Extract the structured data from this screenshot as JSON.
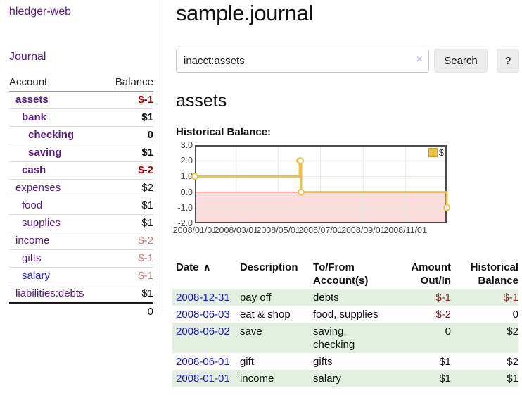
{
  "app": {
    "title": "hledger-web",
    "nav_journal": "Journal"
  },
  "colors": {
    "link_purple": "#551a8b",
    "link_blue": "#1515dd",
    "negative_strong": "#9b0000",
    "negative_light": "#b97575",
    "table_negative": "#941f1f",
    "row_stripe_green": "#e2efe1",
    "series_yellow": "#edc240"
  },
  "sidebar": {
    "header": {
      "account": "Account",
      "balance": "Balance"
    },
    "accounts": [
      {
        "name": "assets",
        "depth": 1,
        "bold": true,
        "balance": "$-1",
        "balance_color": "neg-strong"
      },
      {
        "name": "bank",
        "depth": 2,
        "bold": true,
        "balance": "$1",
        "balance_color": "plain"
      },
      {
        "name": "checking",
        "depth": 3,
        "bold": true,
        "balance": "0",
        "balance_color": "plain"
      },
      {
        "name": "saving",
        "depth": 3,
        "bold": true,
        "balance": "$1",
        "balance_color": "plain"
      },
      {
        "name": "cash",
        "depth": 2,
        "bold": true,
        "balance": "$-2",
        "balance_color": "neg-strong"
      },
      {
        "name": "expenses",
        "depth": 1,
        "bold": false,
        "balance": "$2",
        "balance_color": "plain"
      },
      {
        "name": "food",
        "depth": 2,
        "bold": false,
        "balance": "$1",
        "balance_color": "plain"
      },
      {
        "name": "supplies",
        "depth": 2,
        "bold": false,
        "balance": "$1",
        "balance_color": "plain"
      },
      {
        "name": "income",
        "depth": 1,
        "bold": false,
        "balance": "$-2",
        "balance_color": "neg-light"
      },
      {
        "name": "gifts",
        "depth": 2,
        "bold": false,
        "balance": "$-1",
        "balance_color": "neg-light"
      },
      {
        "name": "salary",
        "depth": 2,
        "bold": false,
        "balance": "$-1",
        "balance_color": "neg-light",
        "link_color": "blue"
      },
      {
        "name": "liabilities:debts",
        "depth": 1,
        "bold": false,
        "balance": "$1",
        "balance_color": "plain"
      }
    ],
    "total": "0"
  },
  "header": {
    "title": "sample.journal"
  },
  "search": {
    "value": "inacct:assets",
    "clear_icon": "×",
    "button": "Search",
    "help_button": "?"
  },
  "account_page": {
    "heading": "assets",
    "chart_label": "Historical Balance:"
  },
  "chart_data": {
    "type": "line",
    "title": "Historical Balance:",
    "line_style": "steps",
    "series": [
      {
        "name": "$",
        "color": "#edc240",
        "points": [
          [
            "2008-01-01",
            1
          ],
          [
            "2008-06-01",
            2
          ],
          [
            "2008-06-02",
            2
          ],
          [
            "2008-06-03",
            0
          ],
          [
            "2008-12-31",
            -1
          ]
        ]
      }
    ],
    "xlim": [
      "2008-01-01",
      "2008-12-31"
    ],
    "ylim": [
      -2,
      3
    ],
    "x_ticks": [
      "2008/01/01",
      "2008/03/01",
      "2008/05/01",
      "2008/07/01",
      "2008/09/01",
      "2008/11/01"
    ],
    "y_ticks": [
      "3.0",
      "2.0",
      "1.0",
      "0.0",
      "-1.0",
      "-2.0"
    ],
    "grid": true,
    "grid_color": "#e6e6e6",
    "border_color": "#4d4d4d",
    "negative_region_color": "#fbdcdc",
    "zero_line_color": "#800000",
    "legend_position": "top-right"
  },
  "register_table": {
    "columns": [
      "Date",
      "Description",
      "To/From Account(s)",
      "Amount Out/In",
      "Historical Balance"
    ],
    "sort_icon": "∧",
    "rows": [
      {
        "date": "2008-12-31",
        "description": "pay off",
        "accounts": "debts",
        "amount": "$-1",
        "amount_neg": true,
        "balance": "$-1",
        "balance_neg": true
      },
      {
        "date": "2008-06-03",
        "description": "eat & shop",
        "accounts": "food, supplies",
        "amount": "$-2",
        "amount_neg": true,
        "balance": "0",
        "balance_neg": false
      },
      {
        "date": "2008-06-02",
        "description": "save",
        "accounts": "saving, checking",
        "amount": "0",
        "amount_neg": false,
        "balance": "$2",
        "balance_neg": false
      },
      {
        "date": "2008-06-01",
        "description": "gift",
        "accounts": "gifts",
        "amount": "$1",
        "amount_neg": false,
        "balance": "$2",
        "balance_neg": false
      },
      {
        "date": "2008-01-01",
        "description": "income",
        "accounts": "salary",
        "amount": "$1",
        "amount_neg": false,
        "balance": "$1",
        "balance_neg": false
      }
    ]
  }
}
